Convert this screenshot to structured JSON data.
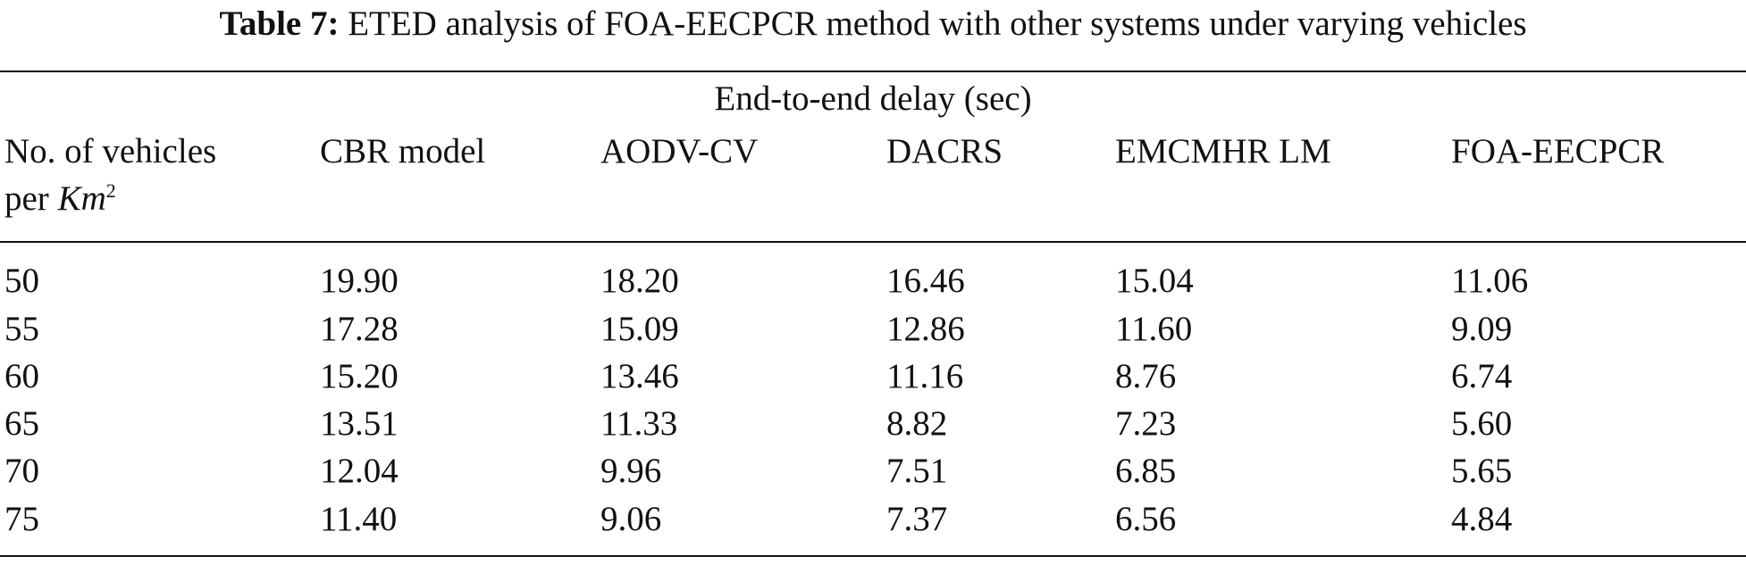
{
  "caption": {
    "label": "Table 7:",
    "text": "ETED analysis of FOA-EECPCR method with other systems under varying vehicles"
  },
  "table": {
    "spanner": "End-to-end delay (sec)",
    "stub_header_line1": "No. of vehicles",
    "stub_header_line2_prefix": "per",
    "stub_header_unit": "Km",
    "stub_header_exponent": "2",
    "columns": [
      "CBR model",
      "AODV-CV",
      "DACRS",
      "EMCMHR LM",
      "FOA-EECPCR"
    ],
    "rows": [
      {
        "vehicles": "50",
        "values": [
          "19.90",
          "18.20",
          "16.46",
          "15.04",
          "11.06"
        ]
      },
      {
        "vehicles": "55",
        "values": [
          "17.28",
          "15.09",
          "12.86",
          "11.60",
          "9.09"
        ]
      },
      {
        "vehicles": "60",
        "values": [
          "15.20",
          "13.46",
          "11.16",
          "8.76",
          "6.74"
        ]
      },
      {
        "vehicles": "65",
        "values": [
          "13.51",
          "11.33",
          "8.82",
          "7.23",
          "5.60"
        ]
      },
      {
        "vehicles": "70",
        "values": [
          "12.04",
          "9.96",
          "7.51",
          "6.85",
          "5.65"
        ]
      },
      {
        "vehicles": "75",
        "values": [
          "11.40",
          "9.06",
          "7.37",
          "6.56",
          "4.84"
        ]
      }
    ]
  }
}
